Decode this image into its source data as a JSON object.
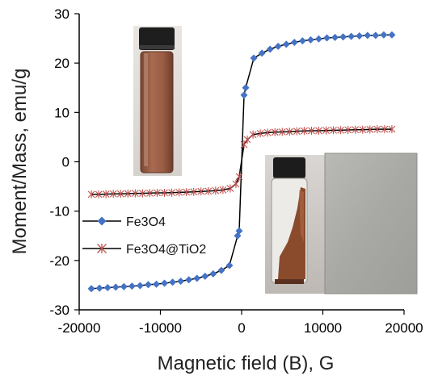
{
  "chart_data": {
    "type": "scatter",
    "xlabel": "Magnetic field (B), G",
    "ylabel": "Moment/Mass, emu/g",
    "xlim": [
      -20000,
      20000
    ],
    "ylim": [
      -30,
      30
    ],
    "xticks": [
      -20000,
      -10000,
      0,
      10000,
      20000
    ],
    "yticks": [
      -30,
      -20,
      -10,
      0,
      10,
      20,
      30
    ],
    "xtick_labels": [
      "-20000",
      "-10000",
      "0",
      "10000",
      "20000"
    ],
    "ytick_labels": [
      "-30",
      "-20",
      "-10",
      "0",
      "10",
      "20",
      "30"
    ],
    "grid": false,
    "legend_position": "left",
    "series": [
      {
        "name": "Fe3O4",
        "color": "#4472C4",
        "marker": "diamond",
        "x": [
          -18500,
          -17500,
          -16500,
          -15500,
          -14500,
          -13500,
          -12500,
          -11500,
          -10500,
          -9500,
          -8500,
          -7500,
          -6500,
          -5500,
          -4500,
          -3500,
          -2500,
          -1500,
          -500,
          -300,
          300,
          500,
          1500,
          2500,
          3500,
          4500,
          5500,
          6500,
          7500,
          8500,
          9500,
          10500,
          11500,
          12500,
          13500,
          14500,
          15500,
          16500,
          17500,
          18500
        ],
        "y": [
          -25.7,
          -25.6,
          -25.5,
          -25.4,
          -25.3,
          -25.2,
          -25.1,
          -24.9,
          -24.8,
          -24.6,
          -24.4,
          -24.2,
          -23.9,
          -23.6,
          -23.2,
          -22.7,
          -22.0,
          -21.0,
          -15.0,
          -14.0,
          13.5,
          15.0,
          21.0,
          22.0,
          22.8,
          23.4,
          23.8,
          24.2,
          24.5,
          24.7,
          24.9,
          25.1,
          25.2,
          25.3,
          25.4,
          25.5,
          25.6,
          25.6,
          25.7,
          25.7
        ]
      },
      {
        "name": "Fe3O4@TiO2",
        "color": "#C0504D",
        "marker": "star",
        "x": [
          -18500,
          -17600,
          -16700,
          -15800,
          -14900,
          -14000,
          -13100,
          -12200,
          -11300,
          -10400,
          -9500,
          -8600,
          -7700,
          -6800,
          -5900,
          -5000,
          -4100,
          -3200,
          -2300,
          -1400,
          -700,
          -300,
          300,
          700,
          1400,
          2300,
          3200,
          4100,
          5000,
          5900,
          6800,
          7700,
          8600,
          9500,
          10400,
          11300,
          12200,
          13100,
          14000,
          14900,
          15800,
          16700,
          17600,
          18500
        ],
        "y": [
          -6.6,
          -6.6,
          -6.55,
          -6.5,
          -6.5,
          -6.45,
          -6.4,
          -6.4,
          -6.35,
          -6.3,
          -6.3,
          -6.25,
          -6.2,
          -6.15,
          -6.1,
          -6.0,
          -5.95,
          -5.85,
          -5.7,
          -5.4,
          -4.5,
          -3.0,
          3.5,
          4.5,
          5.5,
          5.75,
          5.9,
          6.0,
          6.05,
          6.1,
          6.2,
          6.25,
          6.3,
          6.3,
          6.35,
          6.4,
          6.4,
          6.45,
          6.5,
          6.5,
          6.55,
          6.6,
          6.6,
          6.6
        ]
      }
    ],
    "insets": [
      {
        "name": "vial-dispersion-photo"
      },
      {
        "name": "vial-magnet-photo"
      }
    ]
  }
}
